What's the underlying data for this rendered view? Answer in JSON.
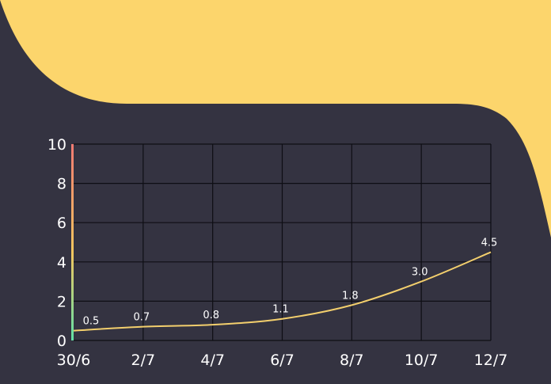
{
  "colors": {
    "background": "#343341",
    "accent_blob": "#fcd56c",
    "grid": "#0e0e14",
    "line": "#f3cf6d",
    "text": "#ffffff",
    "axis_gradient_top": "#f07a72",
    "axis_gradient_middle": "#f4c65f",
    "axis_gradient_bottom": "#61e0a6"
  },
  "chart_data": {
    "type": "line",
    "x": [
      "30/6",
      "2/7",
      "4/7",
      "6/7",
      "8/7",
      "10/7",
      "12/7"
    ],
    "series": [
      {
        "values": [
          0.5,
          0.7,
          0.8,
          1.1,
          1.8,
          3.0,
          4.5
        ],
        "labels": [
          "0.5",
          "0.7",
          "0.8",
          "1.1",
          "1.8",
          "3.0",
          "4.5"
        ]
      }
    ],
    "yticks": [
      "0",
      "2",
      "4",
      "6",
      "8",
      "10"
    ],
    "ylim": [
      0,
      10
    ],
    "grid": true,
    "title": "",
    "xlabel": "",
    "ylabel": ""
  }
}
